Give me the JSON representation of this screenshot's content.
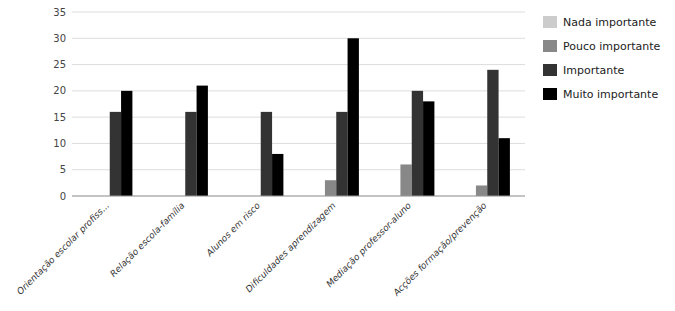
{
  "chart_data": {
    "type": "bar",
    "categories": [
      "Orientação escolar profiss...",
      "Relação escola-família",
      "Alunos em risco",
      "Dificuldades aprendizagem",
      "Mediação professor-aluno",
      "Acções formação/prevenção"
    ],
    "series": [
      {
        "name": "Nada importante",
        "color": "#cccccc",
        "values": [
          0,
          0,
          0,
          0,
          0,
          0
        ]
      },
      {
        "name": "Pouco importante",
        "color": "#888888",
        "values": [
          0,
          0,
          0,
          3,
          6,
          2
        ]
      },
      {
        "name": "Importante",
        "color": "#333333",
        "values": [
          16,
          16,
          16,
          16,
          20,
          24
        ]
      },
      {
        "name": "Muito importante",
        "color": "#000000",
        "values": [
          20,
          21,
          8,
          30,
          18,
          11
        ]
      }
    ],
    "ylim": [
      0,
      35
    ],
    "yticks": [
      0,
      5,
      10,
      15,
      20,
      25,
      30,
      35
    ],
    "grid": true,
    "legend": "right"
  }
}
